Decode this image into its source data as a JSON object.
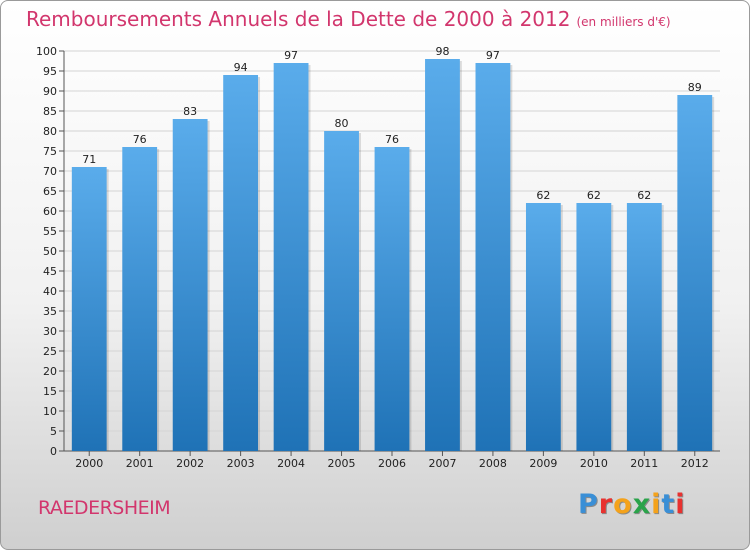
{
  "header": {
    "title": "Remboursements Annuels de la Dette de 2000 à 2012",
    "subtitle": "(en milliers d'€)"
  },
  "footer": {
    "commune": "RAEDERSHEIM",
    "logo_letters": [
      "P",
      "r",
      "o",
      "x",
      "i",
      "t",
      "i"
    ]
  },
  "colors": {
    "title": "#d2366d",
    "bar_light": "#5aaceb",
    "bar_dark": "#1f72b6",
    "logo": [
      "#3a8fd6",
      "#e8312f",
      "#f4a21b",
      "#2aa34a",
      "#f4a21b",
      "#3a8fd6",
      "#e8312f"
    ]
  },
  "chart_data": {
    "type": "bar",
    "title": "Remboursements Annuels de la Dette de 2000 à 2012",
    "subtitle": "(en milliers d'€)",
    "xlabel": "",
    "ylabel": "",
    "categories": [
      "2000",
      "2001",
      "2002",
      "2003",
      "2004",
      "2005",
      "2006",
      "2007",
      "2008",
      "2009",
      "2010",
      "2011",
      "2012"
    ],
    "values": [
      71,
      76,
      83,
      94,
      97,
      80,
      76,
      98,
      97,
      62,
      62,
      62,
      89
    ],
    "ylim": [
      0,
      100
    ],
    "ytick_step": 5,
    "grid": true,
    "data_labels": true
  }
}
